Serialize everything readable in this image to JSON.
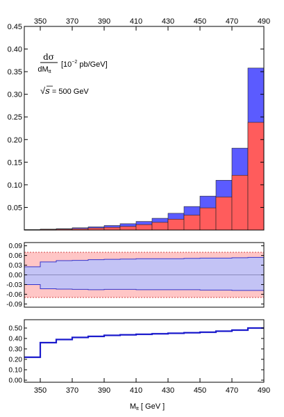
{
  "chart_data": [
    {
      "panel": "main",
      "type": "bar",
      "x_edges": [
        340,
        350,
        360,
        370,
        380,
        390,
        400,
        410,
        420,
        430,
        440,
        450,
        460,
        470,
        480,
        490
      ],
      "xlim": [
        340,
        490
      ],
      "x_ticks": [
        "350",
        "370",
        "390",
        "410",
        "430",
        "450",
        "470",
        "490"
      ],
      "ylim": [
        0,
        0.45
      ],
      "y_ticks": [
        "0.05",
        "0.10",
        "0.15",
        "0.20",
        "0.25",
        "0.30",
        "0.35",
        "0.40",
        "0.45"
      ],
      "ylabel_numerator": "dσ",
      "ylabel_denominator": "dM",
      "ylabel_subscript": "tt",
      "ylabel_units": "[10",
      "ylabel_exponent": "−2",
      "ylabel_units_rest": " pb/GeV]",
      "energy_sqrt": "√",
      "energy_s": "s",
      "energy_value": " = 500 GeV",
      "series": [
        {
          "color": "#5b5bff",
          "values": [
            0.001,
            0.002,
            0.003,
            0.005,
            0.007,
            0.01,
            0.014,
            0.019,
            0.026,
            0.037,
            0.052,
            0.075,
            0.11,
            0.181,
            0.358
          ]
        },
        {
          "color": "#ff5c5c",
          "values": [
            0.0008,
            0.0015,
            0.002,
            0.003,
            0.0045,
            0.006,
            0.008,
            0.012,
            0.017,
            0.024,
            0.033,
            0.049,
            0.073,
            0.121,
            0.238
          ]
        }
      ]
    },
    {
      "panel": "ratio-band",
      "type": "area",
      "ylim": [
        -0.1,
        0.1
      ],
      "y_ticks": [
        "0.09",
        "0.06",
        "0.03",
        "0.00",
        "-0.03",
        "-0.06",
        "-0.09"
      ],
      "outer_band": {
        "color": "#ffc6c6",
        "upper": 0.07,
        "lower": -0.07
      },
      "inner_band": {
        "color": "#c3c3f5",
        "upper": [
          0.025,
          0.04,
          0.044,
          0.045,
          0.047,
          0.048,
          0.049,
          0.05,
          0.05,
          0.05,
          0.051,
          0.052,
          0.052,
          0.053,
          0.054
        ],
        "lower": [
          -0.03,
          -0.043,
          -0.044,
          -0.045,
          -0.046,
          -0.045,
          -0.045,
          -0.046,
          -0.046,
          -0.046,
          -0.046,
          -0.047,
          -0.047,
          -0.048,
          -0.048
        ]
      }
    },
    {
      "panel": "ratio-line",
      "type": "line",
      "ylim": [
        -0.02,
        0.58
      ],
      "y_ticks": [
        "0.00",
        "0.10",
        "0.20",
        "0.30",
        "0.40",
        "0.50"
      ],
      "x_ticks": [
        "350",
        "370",
        "390",
        "410",
        "430",
        "450",
        "470",
        "490"
      ],
      "xlabel_main": "M",
      "xlabel_subscript": "tt",
      "xlabel_units": " [ GeV ]",
      "values": [
        0.22,
        0.36,
        0.39,
        0.41,
        0.42,
        0.43,
        0.435,
        0.44,
        0.445,
        0.45,
        0.455,
        0.46,
        0.47,
        0.48,
        0.5
      ]
    }
  ]
}
